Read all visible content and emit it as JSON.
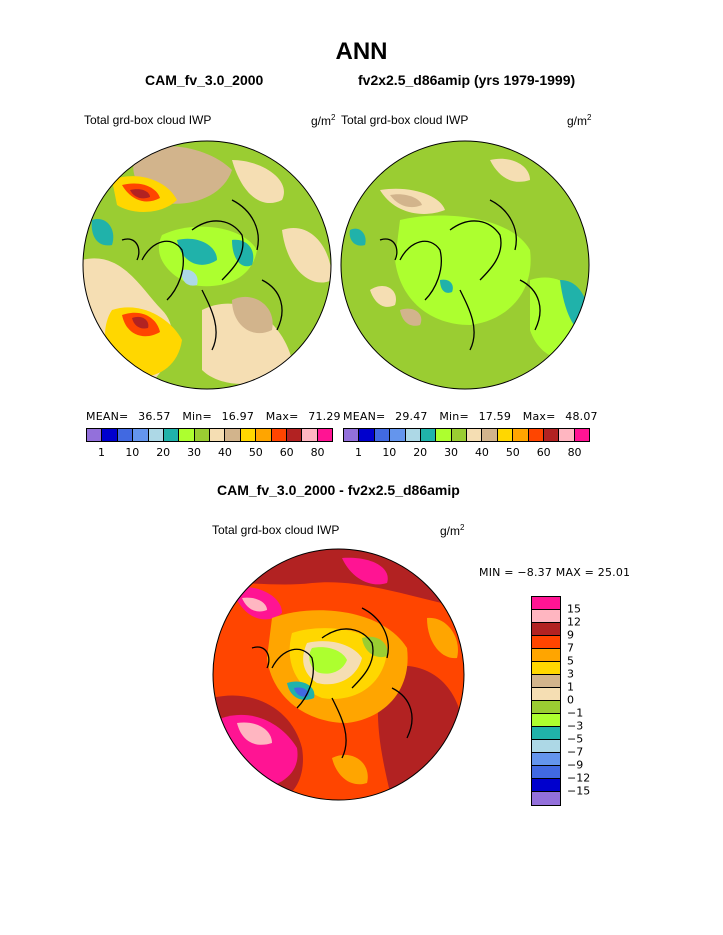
{
  "title": "ANN",
  "panels": [
    {
      "case": "CAM_fv_3.0_2000",
      "variable": "Total grd-box cloud IWP",
      "units": "g/m",
      "units_exp": "2",
      "stats": {
        "mean_label": "MEAN=",
        "mean": "36.57",
        "min_label": "Min=",
        "min": "16.97",
        "max_label": "Max=",
        "max": "71.29"
      }
    },
    {
      "case": "fv2x2.5_d86amip (yrs 1979-1999)",
      "variable": "Total grd-box cloud IWP",
      "units": "g/m",
      "units_exp": "2",
      "stats": {
        "mean_label": "MEAN=",
        "mean": "29.47",
        "min_label": "Min=",
        "min": "17.59",
        "max_label": "Max=",
        "max": "48.07"
      }
    }
  ],
  "colorbar_top": {
    "colors": [
      "#9370db",
      "#0000cd",
      "#4169e1",
      "#6495ed",
      "#add8e6",
      "#20b2aa",
      "#adff2f",
      "#9acd32",
      "#f5deb3",
      "#d2b48c",
      "#ffd700",
      "#ffa500",
      "#ff4500",
      "#b22222",
      "#ffb6c1",
      "#ff1493"
    ],
    "ticks": [
      "1",
      "10",
      "20",
      "30",
      "40",
      "50",
      "60",
      "80"
    ]
  },
  "diff_panel": {
    "title": "CAM_fv_3.0_2000 - fv2x2.5_d86amip",
    "variable": "Total grd-box cloud IWP",
    "units": "g/m",
    "units_exp": "2",
    "min_max_text": "MIN =  −8.37  MAX =  25.01"
  },
  "colorbar_diff": {
    "colors": [
      "#ff1493",
      "#ffb6c1",
      "#b22222",
      "#ff4500",
      "#ffa500",
      "#ffd700",
      "#d2b48c",
      "#f5deb3",
      "#9acd32",
      "#adff2f",
      "#20b2aa",
      "#add8e6",
      "#6495ed",
      "#4169e1",
      "#0000cd",
      "#9370db"
    ],
    "ticks": [
      "15",
      "12",
      "9",
      "7",
      "5",
      "3",
      "1",
      "0",
      "−1",
      "−3",
      "−5",
      "−7",
      "−9",
      "−12",
      "−15"
    ]
  },
  "map_colors": {
    "ocean_green": "#9acd32",
    "light_green": "#adff2f",
    "teal": "#20b2aa",
    "light_blue": "#add8e6",
    "wheat": "#f5deb3",
    "tan": "#d2b48c",
    "gold": "#ffd700",
    "orange": "#ffa500",
    "red_orange": "#ff4500",
    "firebrick": "#b22222",
    "pink": "#ffb6c1",
    "deep_pink": "#ff1493"
  }
}
